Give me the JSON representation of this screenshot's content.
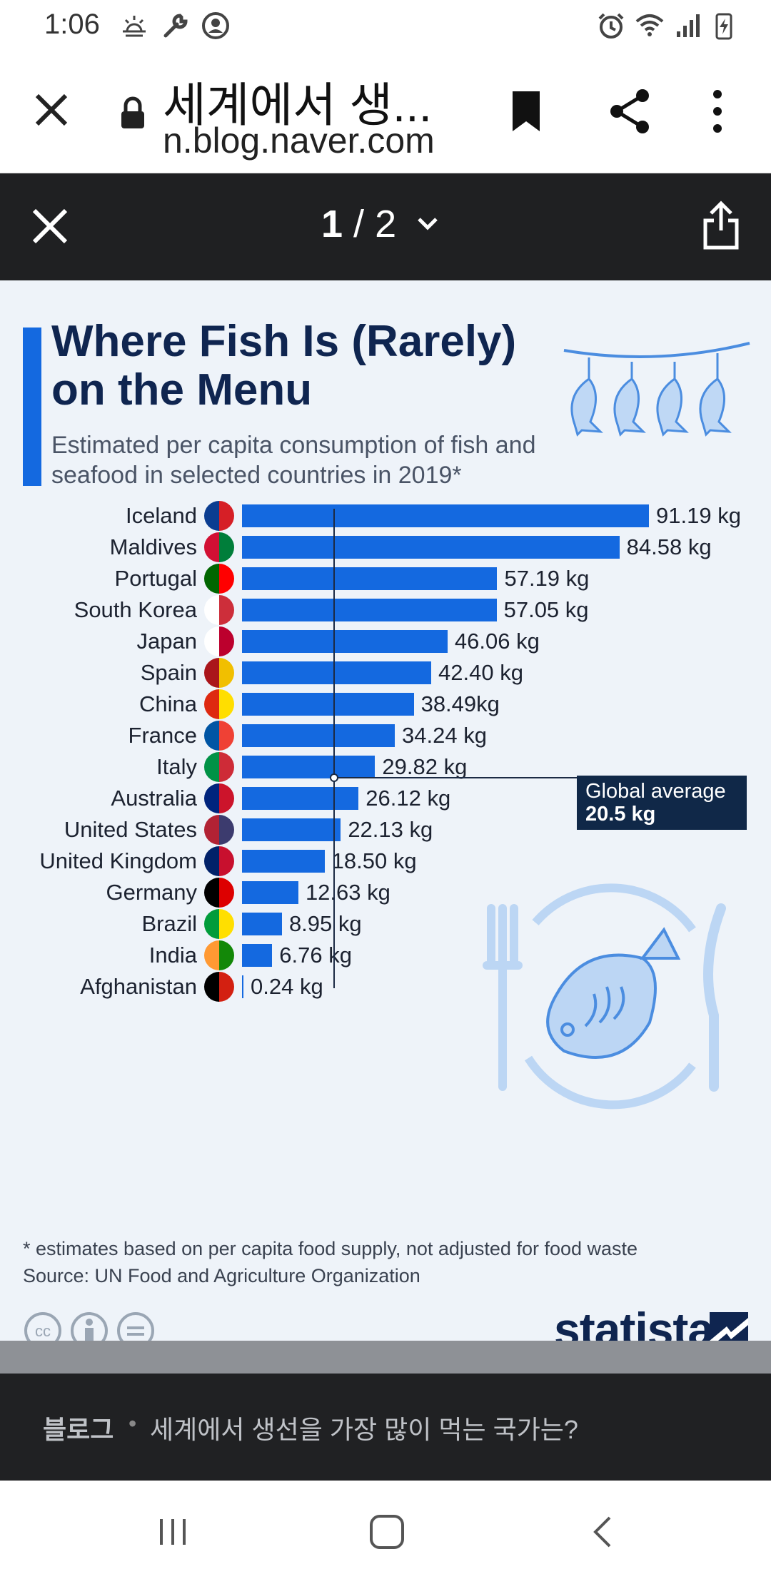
{
  "status_bar": {
    "time": "1:06"
  },
  "browser": {
    "title": "세계에서 생...",
    "url": "n.blog.naver.com"
  },
  "viewer": {
    "current": "1",
    "separator": " / ",
    "total": "2"
  },
  "infographic": {
    "title": "Where Fish Is (Rarely) on the Menu",
    "subtitle": "Estimated per capita consumption of fish and seafood in selected countries in 2019*",
    "global_average_label": "Global average",
    "global_average_value": "20.5 kg",
    "note": "* estimates based on per capita food supply, not adjusted for food waste",
    "source": "Source: UN Food and Agriculture Organization",
    "brand": "statista"
  },
  "chart_data": {
    "type": "bar",
    "orientation": "horizontal",
    "title": "Where Fish Is (Rarely) on the Menu",
    "subtitle": "Estimated per capita consumption of fish and seafood in selected countries in 2019*",
    "unit": "kg",
    "categories": [
      "Iceland",
      "Maldives",
      "Portugal",
      "South Korea",
      "Japan",
      "Spain",
      "China",
      "France",
      "Italy",
      "Australia",
      "United States",
      "United Kingdom",
      "Germany",
      "Brazil",
      "India",
      "Afghanistan"
    ],
    "values": [
      91.19,
      84.58,
      57.19,
      57.05,
      46.06,
      42.4,
      38.49,
      34.24,
      29.82,
      26.12,
      22.13,
      18.5,
      12.63,
      8.95,
      6.76,
      0.24
    ],
    "value_labels": [
      "91.19 kg",
      "84.58 kg",
      "57.19 kg",
      "57.05 kg",
      "46.06 kg",
      "42.40 kg",
      "38.49kg",
      "34.24 kg",
      "29.82 kg",
      "26.12 kg",
      "22.13 kg",
      "18.50 kg",
      "12.63 kg",
      "8.95 kg",
      "6.76 kg",
      "0.24 kg"
    ],
    "reference_line": {
      "label": "Global average",
      "value": 20.5
    },
    "xlim": [
      0,
      91.19
    ]
  },
  "caption": {
    "category": "블로그",
    "separator": "•",
    "text": "세계에서 생선을 가장 많이 먹는 국가는?"
  },
  "colors": {
    "bar": "#1469e0",
    "title": "#0f2550",
    "background": "#eef3f9"
  }
}
